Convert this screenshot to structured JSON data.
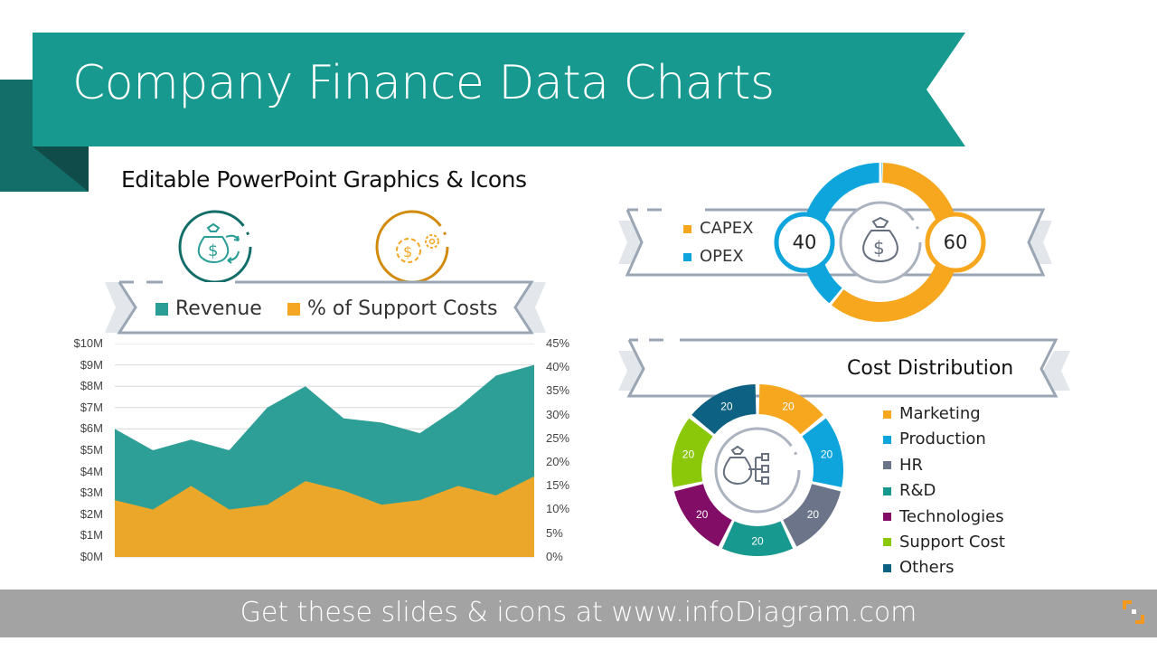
{
  "header": {
    "title": "Company Finance Data Charts",
    "subtitle": "Editable PowerPoint Graphics & Icons",
    "accent_color": "#17998f",
    "dark_color": "#136b66"
  },
  "revenue_panel": {
    "icons": [
      "money-bag-cycle-icon",
      "dollar-gears-icon"
    ],
    "legend": [
      {
        "label": "Revenue",
        "color": "#2a9d95"
      },
      {
        "label": "% of Support Costs",
        "color": "#f5a623"
      }
    ],
    "left_axis": [
      "$10M",
      "$9M",
      "$8M",
      "$7M",
      "$6M",
      "$5M",
      "$4M",
      "$3M",
      "$2M",
      "$1M",
      "$0M"
    ],
    "right_axis": [
      "45%",
      "40%",
      "35%",
      "30%",
      "25%",
      "20%",
      "15%",
      "10%",
      "5%",
      "0%"
    ]
  },
  "capex_panel": {
    "legend": [
      {
        "label": "CAPEX",
        "color": "#f7a71e"
      },
      {
        "label": "OPEX",
        "color": "#0ea5dd"
      }
    ],
    "opex_value": "40",
    "capex_value": "60",
    "center_icon": "money-bag-icon"
  },
  "cost_panel": {
    "title": "Cost Distribution",
    "center_icon": "money-bag-structure-icon",
    "legend": [
      {
        "label": "Marketing",
        "color": "#f7a71e"
      },
      {
        "label": "Production",
        "color": "#0ea5dd"
      },
      {
        "label": "HR",
        "color": "#6b7488"
      },
      {
        "label": "R&D",
        "color": "#17998f"
      },
      {
        "label": "Technologies",
        "color": "#810d66"
      },
      {
        "label": "Support Cost",
        "color": "#8cc80a"
      },
      {
        "label": "Others",
        "color": "#0d6182"
      }
    ]
  },
  "footer": {
    "text": "Get these slides & icons at www.infoDiagram.com",
    "logo": "infodiagram-logo-icon"
  },
  "chart_data": [
    {
      "type": "area",
      "title": "Revenue vs % of Support Costs",
      "x": [
        1,
        2,
        3,
        4,
        5,
        6,
        7,
        8,
        9,
        10,
        11,
        12
      ],
      "series": [
        {
          "name": "Revenue",
          "axis": "left",
          "unit": "$M",
          "values": [
            6,
            5,
            5.5,
            5,
            7,
            8,
            6.5,
            6.3,
            5.8,
            7,
            8.5,
            9
          ]
        },
        {
          "name": "% of Support Costs",
          "axis": "right",
          "unit": "%",
          "values": [
            12,
            10,
            15,
            10,
            11,
            16,
            14,
            11,
            12,
            15,
            13,
            17
          ]
        }
      ],
      "ylim_left": [
        0,
        10
      ],
      "ylim_right": [
        0,
        45
      ],
      "grid": true,
      "legend_position": "top"
    },
    {
      "type": "pie",
      "title": "CAPEX vs OPEX",
      "categories": [
        "CAPEX",
        "OPEX"
      ],
      "values": [
        60,
        40
      ]
    },
    {
      "type": "pie",
      "title": "Cost Distribution",
      "categories": [
        "Marketing",
        "Production",
        "HR",
        "R&D",
        "Technologies",
        "Support Cost",
        "Others"
      ],
      "values": [
        20,
        20,
        20,
        20,
        20,
        20,
        20
      ],
      "legend_position": "right"
    }
  ]
}
